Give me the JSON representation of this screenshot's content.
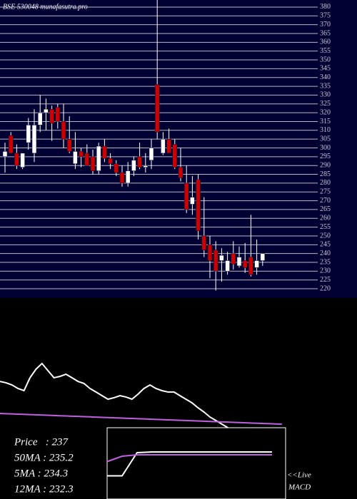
{
  "chart_data": [
    {
      "type": "candlestick",
      "title": "BSE 530048 munafasutra.pro",
      "open": [
        295,
        307,
        297,
        289,
        303,
        297,
        313,
        320,
        322,
        323,
        315,
        305,
        291,
        298,
        297,
        295,
        287,
        301,
        294,
        291,
        286,
        280,
        287,
        295,
        289,
        293,
        336,
        297,
        305,
        302,
        289,
        280,
        268,
        282,
        250,
        245,
        242,
        236,
        230,
        240,
        233,
        236,
        238,
        232,
        236
      ],
      "high": [
        303,
        309,
        302,
        297,
        317,
        322,
        330,
        328,
        324,
        325,
        325,
        318,
        309,
        300,
        302,
        299,
        303,
        305,
        297,
        293,
        290,
        292,
        295,
        303,
        297,
        305,
        384,
        309,
        311,
        305,
        300,
        290,
        284,
        285,
        272,
        250,
        247,
        243,
        241,
        247,
        244,
        246,
        262,
        248,
        240
      ],
      "low": [
        286,
        297,
        288,
        288,
        299,
        292,
        309,
        310,
        304,
        311,
        300,
        297,
        288,
        289,
        291,
        285,
        285,
        292,
        288,
        284,
        278,
        278,
        284,
        288,
        286,
        288,
        305,
        296,
        297,
        288,
        281,
        263,
        262,
        248,
        238,
        226,
        219,
        224,
        228,
        231,
        232,
        229,
        227,
        228,
        233
      ],
      "close": [
        298,
        297,
        290,
        297,
        313,
        313,
        320,
        322,
        314,
        315,
        305,
        298,
        298,
        295,
        290,
        287,
        301,
        294,
        291,
        286,
        280,
        287,
        293,
        289,
        290,
        300,
        309,
        305,
        297,
        289,
        283,
        265,
        272,
        253,
        242,
        236,
        230,
        239,
        236,
        234,
        238,
        232,
        228,
        236,
        240
      ],
      "up_color": "#ffffff",
      "down_color": "#cc0000",
      "wick_color": "#ffffff",
      "grid_color": "#b8b8c8",
      "ylim": [
        218,
        382
      ],
      "yticks": [
        220,
        225,
        230,
        235,
        240,
        245,
        250,
        255,
        260,
        265,
        270,
        275,
        280,
        285,
        290,
        295,
        300,
        305,
        310,
        315,
        320,
        325,
        330,
        335,
        340,
        345,
        350,
        355,
        360,
        365,
        370,
        375,
        380
      ]
    },
    {
      "type": "line",
      "series": [
        {
          "color": "#ffffff",
          "values": [
            40.6,
            39.4,
            37.5,
            34.4,
            32.5,
            43.8,
            51.3,
            56.3,
            50,
            43.8,
            45,
            46.9,
            43.8,
            40.6,
            38.8,
            34.4,
            31.3,
            28.1,
            25,
            26.3,
            28.1,
            26.9,
            25,
            29.4,
            34.4,
            37.5,
            34.4,
            32.5,
            31.3,
            31.3,
            28.1,
            25,
            21.9,
            17.5,
            13.8,
            9.4,
            6.3,
            3.1,
            0
          ]
        },
        {
          "color": "#c060e0",
          "values": [
            12.5,
            12.3,
            12.1,
            11.9,
            11.7,
            11.5,
            11.3,
            11.1,
            10.9,
            10.7,
            10.5,
            10.3,
            10.1,
            9.9,
            9.7,
            9.5,
            9.3,
            9.1,
            8.9,
            8.7,
            8.5,
            8.3,
            8.1,
            7.9,
            7.7,
            7.5,
            7.3,
            7.1,
            6.9,
            6.7,
            6.5,
            6.3,
            6.1,
            5.9,
            5.7,
            5.5,
            5.3,
            5.1,
            4.9,
            4.7,
            4.5,
            4.3,
            4.1,
            3.9,
            3.7,
            3.5,
            3.3,
            3.1
          ]
        }
      ],
      "ylim": [
        0,
        100
      ]
    },
    {
      "type": "line",
      "series": [
        {
          "color": "#ffffff",
          "values": [
            -0.35,
            -0.35,
            0.3,
            0.32,
            0.32,
            0.32,
            0.32,
            0.32,
            0.32,
            0.32,
            0.32,
            0.32
          ]
        },
        {
          "color": "#c060e0",
          "values": [
            0.05,
            0.2,
            0.24,
            0.24,
            0.24,
            0.24,
            0.24,
            0.24,
            0.24,
            0.24,
            0.24,
            0.24
          ]
        }
      ],
      "ylim": [
        -1,
        1
      ],
      "annotations": [
        "<<Live",
        "MACD"
      ]
    },
    {
      "type": "text",
      "lines": [
        "Price   : 237",
        "50MA : 235.2",
        "5MA : 234.3",
        "12MA : 232.3"
      ]
    }
  ]
}
